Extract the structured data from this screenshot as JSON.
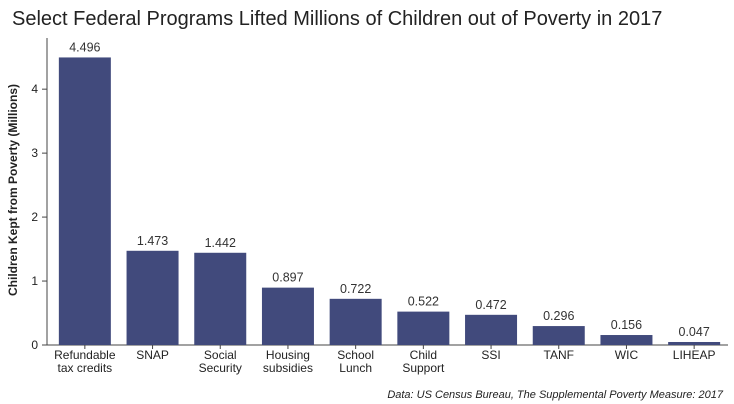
{
  "chart_data": {
    "type": "bar",
    "title": "Select Federal Programs Lifted Millions of Children out of Poverty in 2017",
    "ylabel": "Children Kept from Poverty (Millions)",
    "xlabel": "",
    "categories": [
      [
        "Refundable",
        "tax credits"
      ],
      [
        "SNAP"
      ],
      [
        "Social",
        "Security"
      ],
      [
        "Housing",
        "subsidies"
      ],
      [
        "School",
        "Lunch"
      ],
      [
        "Child",
        "Support"
      ],
      [
        "SSI"
      ],
      [
        "TANF"
      ],
      [
        "WIC"
      ],
      [
        "LIHEAP"
      ]
    ],
    "values": [
      4.496,
      1.473,
      1.442,
      0.897,
      0.722,
      0.522,
      0.472,
      0.296,
      0.156,
      0.047
    ],
    "value_labels": [
      "4.496",
      "1.473",
      "1.442",
      "0.897",
      "0.722",
      "0.522",
      "0.472",
      "0.296",
      "0.156",
      "0.047"
    ],
    "yticks": [
      0,
      1,
      2,
      3,
      4
    ],
    "ylim": [
      0,
      4.8
    ],
    "grid": false,
    "legend": "none",
    "bar_color": "#414a7c",
    "source": "Data: US Census Bureau, The Supplemental Poverty Measure: 2017"
  }
}
